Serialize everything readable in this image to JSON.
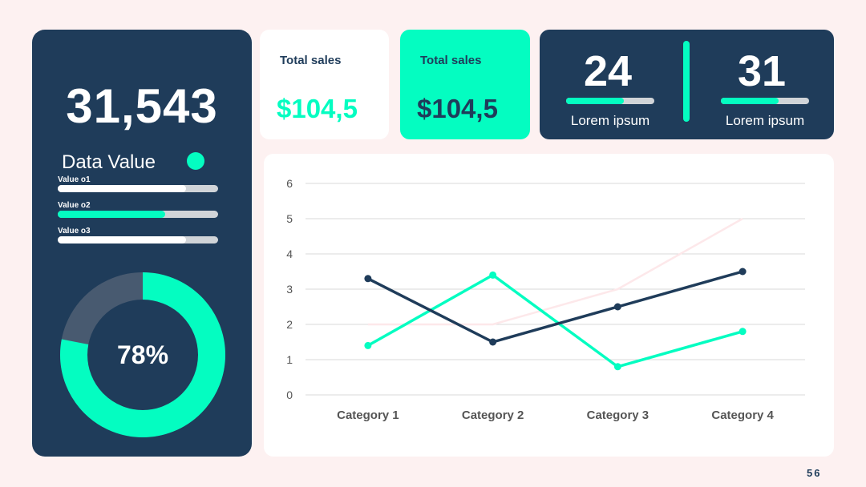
{
  "colors": {
    "navy": "#1f3c5a",
    "mint": "#04fdc1",
    "track": "#d0d4d8",
    "pale_pink": "#fde8ea",
    "background": "#fdf1f1"
  },
  "left_panel": {
    "big_number": "31,543",
    "label": "Data Value",
    "bars": [
      {
        "label": "Value o1",
        "fraction": 0.8,
        "color": "#ffffff"
      },
      {
        "label": "Value o2",
        "fraction": 0.67,
        "color": "#04fdc1"
      },
      {
        "label": "Value o3",
        "fraction": 0.8,
        "color": "#ffffff"
      }
    ],
    "donut": {
      "percent": 78,
      "label": "78%"
    }
  },
  "cards": [
    {
      "title": "Total sales",
      "value": "$104,5"
    },
    {
      "title": "Total sales",
      "value": "$104,5"
    }
  ],
  "kpis": [
    {
      "number": "24",
      "label": "Lorem ipsum",
      "fraction": 0.65
    },
    {
      "number": "31",
      "label": "Lorem ipsum",
      "fraction": 0.65
    }
  ],
  "page_number": "56",
  "chart_data": {
    "type": "line",
    "categories": [
      "Category 1",
      "Category 2",
      "Category 3",
      "Category 4"
    ],
    "ylim": [
      0,
      6
    ],
    "yticks": [
      "0",
      "1",
      "2",
      "3",
      "4",
      "5",
      "6"
    ],
    "grid": true,
    "series": [
      {
        "values": [
          3.3,
          1.5,
          2.5,
          3.5
        ],
        "color": "#1f3c5a",
        "markers": true
      },
      {
        "values": [
          1.4,
          3.4,
          0.8,
          1.8
        ],
        "color": "#04fdc1",
        "markers": true
      },
      {
        "values": [
          2.0,
          2.0,
          3.0,
          5.0
        ],
        "color": "#fde8ea",
        "markers": false
      }
    ]
  }
}
